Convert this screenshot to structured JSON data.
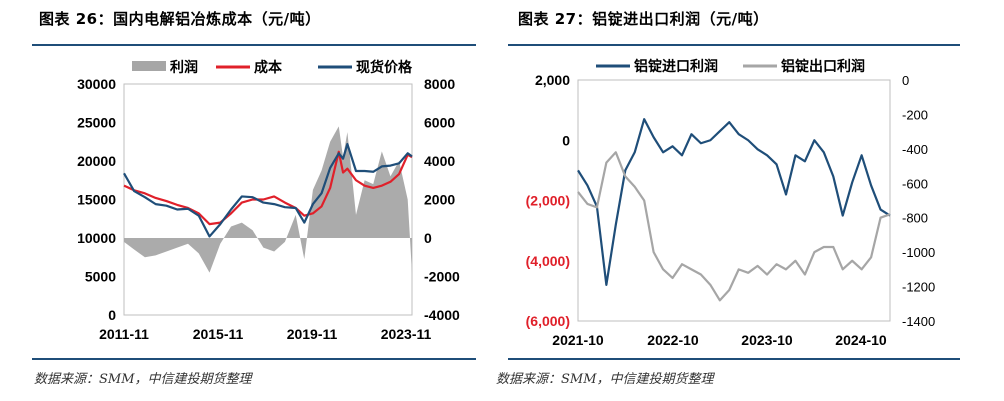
{
  "panels": {
    "left": {
      "title": "图表 26：国内电解铝冶炼成本（元/吨）",
      "source": "数据来源：SMM，中信建投期货整理"
    },
    "right": {
      "title": "图表 27：铝锭进出口利润（元/吨）",
      "source": "数据来源：SMM，中信建投期货整理"
    }
  },
  "chart_data": [
    {
      "type": "line",
      "title": "",
      "x_ticks": [
        "2011-11",
        "2015-11",
        "2019-11",
        "2023-11"
      ],
      "y_left_ticks": [
        "30000",
        "25000",
        "20000",
        "15000",
        "10000",
        "5000",
        "0"
      ],
      "y_right_ticks": [
        "8000",
        "6000",
        "4000",
        "2000",
        "0",
        "-2000",
        "-4000"
      ],
      "ylim_left": [
        0,
        30000
      ],
      "ylim_right": [
        -4000,
        8000
      ],
      "x_range": [
        2011.83,
        2025.2
      ],
      "legend_position": "top",
      "colors": {
        "profit": "#a6a6a6",
        "cost": "#e0202a",
        "price": "#1f4e79"
      },
      "series": [
        {
          "name": "利润",
          "kind": "area",
          "axis": "right",
          "x": [
            2011.83,
            2012.3,
            2012.8,
            2013.3,
            2013.8,
            2014.3,
            2014.8,
            2015.3,
            2015.8,
            2016.3,
            2016.8,
            2017.3,
            2017.8,
            2018.3,
            2018.8,
            2019.3,
            2019.8,
            2020.2,
            2020.6,
            2021.0,
            2021.4,
            2021.8,
            2022.0,
            2022.2,
            2022.6,
            2023.0,
            2023.4,
            2023.8,
            2024.2,
            2024.6,
            2025.0,
            2025.2
          ],
          "values": [
            -200,
            -600,
            -1000,
            -900,
            -700,
            -500,
            -300,
            -800,
            -1800,
            -300,
            600,
            800,
            400,
            -500,
            -700,
            -200,
            1200,
            -1100,
            2500,
            3500,
            5000,
            5800,
            4200,
            5500,
            1200,
            3000,
            2800,
            4500,
            3200,
            4000,
            2000,
            -1800
          ]
        },
        {
          "name": "成本",
          "kind": "line",
          "axis": "left",
          "x": [
            2011.83,
            2012.3,
            2012.8,
            2013.3,
            2013.8,
            2014.3,
            2014.8,
            2015.3,
            2015.8,
            2016.3,
            2016.8,
            2017.3,
            2017.8,
            2018.3,
            2018.8,
            2019.3,
            2019.8,
            2020.2,
            2020.6,
            2021.0,
            2021.4,
            2021.8,
            2022.0,
            2022.2,
            2022.6,
            2023.0,
            2023.4,
            2023.8,
            2024.2,
            2024.6,
            2025.0,
            2025.2
          ],
          "values": [
            16800,
            16200,
            15800,
            15200,
            14800,
            14300,
            13900,
            13200,
            11800,
            12000,
            13200,
            14600,
            15000,
            15000,
            15400,
            14600,
            13900,
            12900,
            13200,
            14100,
            16500,
            21200,
            18500,
            19000,
            17500,
            16800,
            16500,
            16800,
            17300,
            18300,
            20800,
            20500
          ]
        },
        {
          "name": "现货价格",
          "kind": "line",
          "axis": "left",
          "x": [
            2011.83,
            2012.3,
            2012.8,
            2013.3,
            2013.8,
            2014.3,
            2014.8,
            2015.3,
            2015.8,
            2016.3,
            2016.8,
            2017.3,
            2017.8,
            2018.3,
            2018.8,
            2019.3,
            2019.8,
            2020.2,
            2020.6,
            2021.0,
            2021.4,
            2021.8,
            2022.0,
            2022.2,
            2022.6,
            2023.0,
            2023.4,
            2023.8,
            2024.2,
            2024.6,
            2025.0,
            2025.2
          ],
          "values": [
            18400,
            16100,
            15300,
            14400,
            14200,
            13700,
            13800,
            12900,
            10200,
            11800,
            13700,
            15400,
            15300,
            14600,
            14400,
            14000,
            13900,
            12000,
            14400,
            15800,
            19100,
            21000,
            20300,
            22200,
            18700,
            18700,
            18600,
            19300,
            19400,
            19700,
            21000,
            20600
          ]
        }
      ]
    },
    {
      "type": "line",
      "title": "",
      "x_ticks": [
        "2021-10",
        "2022-10",
        "2023-10",
        "2024-10"
      ],
      "y_left_ticks": [
        "2,000",
        "0",
        "(2,000)",
        "(4,000)",
        "(6,000)"
      ],
      "y_right_ticks": [
        "0",
        "-200",
        "-400",
        "-600",
        "-800",
        "-1000",
        "-1200",
        "-1400"
      ],
      "ylim_left": [
        -6000,
        2000
      ],
      "ylim_right": [
        -1400,
        0
      ],
      "x_range": [
        2021.75,
        2025.05
      ],
      "legend_position": "top",
      "colors": {
        "import": "#1f4e79",
        "export": "#a6a6a6",
        "negative_tick": "#e0202a"
      },
      "series": [
        {
          "name": "铝锭进口利润",
          "kind": "line",
          "axis": "left",
          "x": [
            2021.75,
            2021.85,
            2021.95,
            2022.05,
            2022.15,
            2022.25,
            2022.35,
            2022.45,
            2022.55,
            2022.65,
            2022.75,
            2022.85,
            2022.95,
            2023.05,
            2023.15,
            2023.25,
            2023.35,
            2023.45,
            2023.55,
            2023.65,
            2023.75,
            2023.85,
            2023.95,
            2024.05,
            2024.15,
            2024.25,
            2024.35,
            2024.45,
            2024.55,
            2024.65,
            2024.75,
            2024.85,
            2024.95,
            2025.05
          ],
          "values": [
            -1000,
            -1500,
            -2200,
            -4800,
            -2800,
            -1000,
            -400,
            700,
            100,
            -400,
            -200,
            -500,
            200,
            -100,
            0,
            300,
            600,
            200,
            0,
            -300,
            -500,
            -800,
            -1800,
            -500,
            -700,
            0,
            -400,
            -1200,
            -2500,
            -1400,
            -500,
            -1500,
            -2300,
            -2500
          ]
        },
        {
          "name": "铝锭出口利润",
          "kind": "line",
          "axis": "right",
          "x": [
            2021.75,
            2021.85,
            2021.95,
            2022.05,
            2022.15,
            2022.25,
            2022.35,
            2022.45,
            2022.55,
            2022.65,
            2022.75,
            2022.85,
            2022.95,
            2023.05,
            2023.15,
            2023.25,
            2023.35,
            2023.45,
            2023.55,
            2023.65,
            2023.75,
            2023.85,
            2023.95,
            2024.05,
            2024.15,
            2024.25,
            2024.35,
            2024.45,
            2024.55,
            2024.65,
            2024.75,
            2024.85,
            2024.95,
            2025.05
          ],
          "values": [
            -650,
            -720,
            -740,
            -480,
            -420,
            -560,
            -620,
            -700,
            -1000,
            -1100,
            -1150,
            -1070,
            -1100,
            -1130,
            -1190,
            -1280,
            -1220,
            -1100,
            -1120,
            -1080,
            -1130,
            -1070,
            -1100,
            -1050,
            -1130,
            -1000,
            -970,
            -970,
            -1100,
            -1050,
            -1100,
            -1030,
            -800,
            -780
          ]
        }
      ]
    }
  ]
}
